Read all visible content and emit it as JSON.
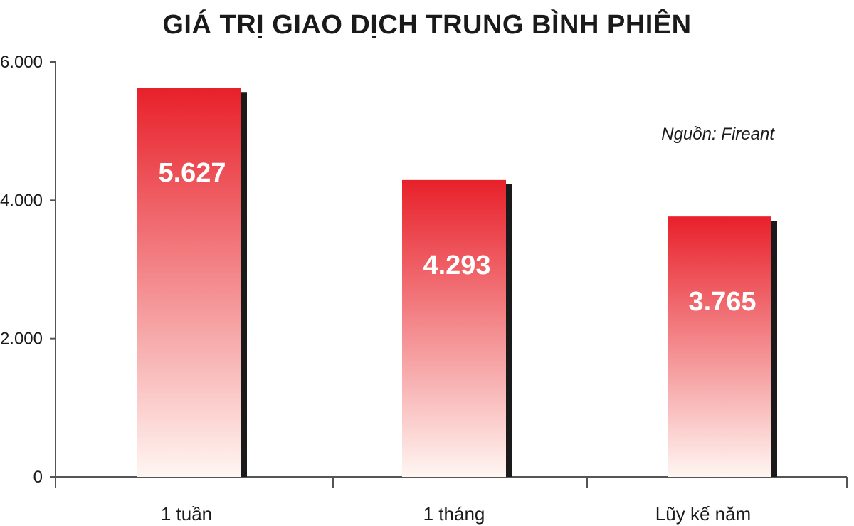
{
  "chart_data": {
    "type": "bar",
    "title": "GIÁ TRỊ GIAO DỊCH TRUNG BÌNH PHIÊN",
    "categories": [
      "1 tuần",
      "1 tháng",
      "Lũy kế năm"
    ],
    "values": [
      5627,
      4293,
      3765
    ],
    "data_labels": [
      "5.627",
      "4.293",
      "3.765"
    ],
    "yticks": [
      0,
      2000,
      4000,
      6000
    ],
    "ytick_labels": [
      "0",
      "2.000",
      "4.000",
      "6.000"
    ],
    "ylim": [
      0,
      6000
    ],
    "grid": false,
    "annotation": "Nguồn: Fireant",
    "colors": {
      "bar_top": "#e8202a",
      "bar_bottom": "#fff6f2",
      "shadow": "#1a1a1a",
      "axis": "#555555"
    }
  }
}
